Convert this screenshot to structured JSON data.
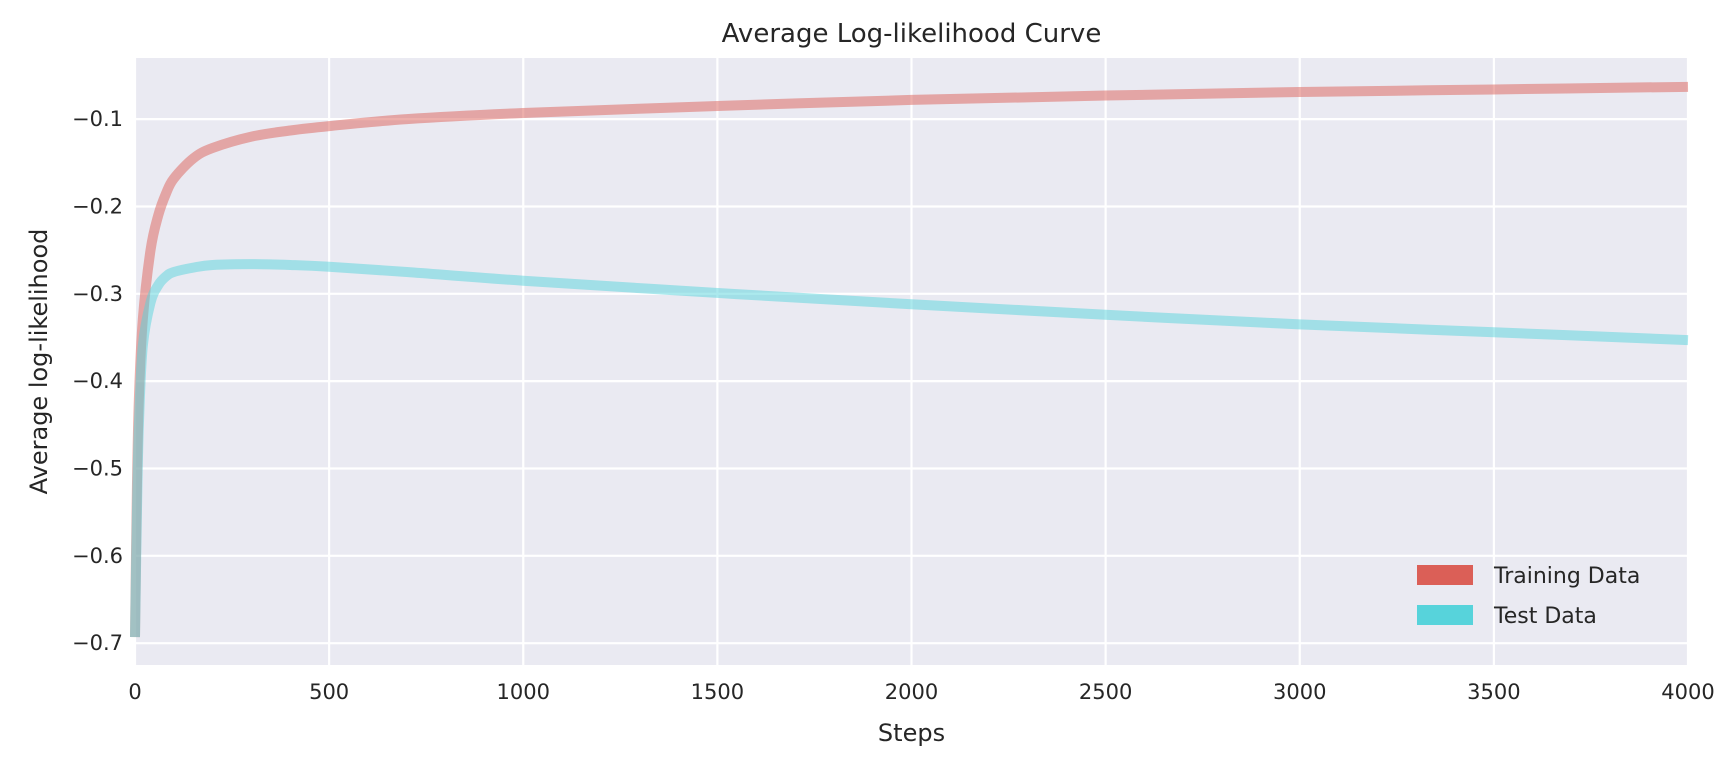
{
  "chart_data": {
    "type": "line",
    "title": "Average Log-likelihood Curve",
    "xlabel": "Steps",
    "ylabel": "Average log-likelihood",
    "xlim": [
      0,
      4000
    ],
    "ylim": [
      -0.725,
      -0.03
    ],
    "xticks": [
      0,
      500,
      1000,
      1500,
      2000,
      2500,
      3000,
      3500,
      4000
    ],
    "xtick_labels": [
      "0",
      "500",
      "1000",
      "1500",
      "2000",
      "2500",
      "3000",
      "3500",
      "4000"
    ],
    "yticks": [
      -0.7,
      -0.6,
      -0.5,
      -0.4,
      -0.3,
      -0.2,
      -0.1
    ],
    "ytick_labels": [
      "−0.7",
      "−0.6",
      "−0.5",
      "−0.4",
      "−0.3",
      "−0.2",
      "−0.1"
    ],
    "grid": true,
    "legend_position": "lower-right",
    "background_color": "#eaeaf2",
    "series": [
      {
        "name": "Training Data",
        "color": "#db5f57",
        "x": [
          0,
          5,
          10,
          20,
          40,
          60,
          80,
          100,
          150,
          200,
          300,
          400,
          500,
          700,
          1000,
          1500,
          2000,
          2500,
          3000,
          3500,
          4000
        ],
        "y": [
          -0.693,
          -0.52,
          -0.42,
          -0.33,
          -0.25,
          -0.21,
          -0.185,
          -0.168,
          -0.145,
          -0.133,
          -0.12,
          -0.113,
          -0.108,
          -0.1,
          -0.093,
          -0.085,
          -0.078,
          -0.073,
          -0.069,
          -0.066,
          -0.063
        ]
      },
      {
        "name": "Test Data",
        "color": "#57d3db",
        "x": [
          0,
          5,
          10,
          20,
          40,
          60,
          80,
          100,
          150,
          200,
          300,
          400,
          500,
          700,
          1000,
          1500,
          2000,
          2500,
          3000,
          3500,
          4000
        ],
        "y": [
          -0.693,
          -0.55,
          -0.45,
          -0.36,
          -0.31,
          -0.29,
          -0.28,
          -0.275,
          -0.27,
          -0.267,
          -0.266,
          -0.267,
          -0.269,
          -0.275,
          -0.285,
          -0.299,
          -0.312,
          -0.324,
          -0.335,
          -0.344,
          -0.353
        ]
      }
    ]
  }
}
